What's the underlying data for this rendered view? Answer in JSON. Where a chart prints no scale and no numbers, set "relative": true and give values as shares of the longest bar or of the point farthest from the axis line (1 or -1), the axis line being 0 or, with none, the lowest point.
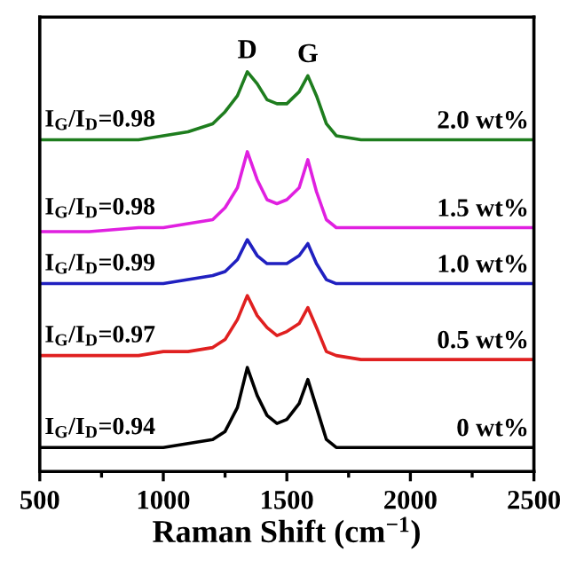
{
  "chart_data": {
    "type": "line",
    "relative": true,
    "xlabel": "Raman Shift (cm$^{−1}$)",
    "x": [
      500,
      700,
      900,
      1000,
      1100,
      1200,
      1250,
      1300,
      1340,
      1380,
      1420,
      1460,
      1500,
      1550,
      1585,
      1620,
      1660,
      1700,
      1800,
      2000,
      2200,
      2500
    ],
    "xlim": [
      500,
      2500
    ],
    "xticks": [
      500,
      {
        "value": 750,
        "label": null
      },
      1000,
      {
        "value": 1250,
        "label": null
      },
      1500,
      {
        "value": 1750,
        "label": null
      },
      2000,
      {
        "value": 2250,
        "label": null
      },
      2500
    ],
    "series": [
      {
        "name": "2.0 wt%",
        "color": "#1e7d1e",
        "values": [
          0.83,
          0.83,
          0.83,
          0.84,
          0.85,
          0.87,
          0.9,
          0.94,
          1.0,
          0.97,
          0.93,
          0.92,
          0.92,
          0.95,
          0.99,
          0.94,
          0.87,
          0.84,
          0.83,
          0.83,
          0.83,
          0.83
        ]
      },
      {
        "name": "1.5 wt%",
        "color": "#e020e0",
        "values": [
          0.6,
          0.6,
          0.61,
          0.61,
          0.62,
          0.63,
          0.66,
          0.71,
          0.8,
          0.73,
          0.68,
          0.67,
          0.68,
          0.71,
          0.78,
          0.7,
          0.63,
          0.61,
          0.61,
          0.61,
          0.61,
          0.61
        ]
      },
      {
        "name": "1.0 wt%",
        "color": "#2020c0",
        "values": [
          0.47,
          0.47,
          0.47,
          0.47,
          0.48,
          0.49,
          0.5,
          0.53,
          0.58,
          0.54,
          0.52,
          0.52,
          0.52,
          0.54,
          0.57,
          0.52,
          0.48,
          0.47,
          0.47,
          0.47,
          0.47,
          0.47
        ]
      },
      {
        "name": "0.5 wt%",
        "color": "#e02020",
        "values": [
          0.29,
          0.29,
          0.29,
          0.3,
          0.3,
          0.31,
          0.33,
          0.38,
          0.44,
          0.39,
          0.36,
          0.34,
          0.35,
          0.37,
          0.41,
          0.36,
          0.3,
          0.29,
          0.28,
          0.28,
          0.28,
          0.28
        ]
      },
      {
        "name": "0 wt%",
        "color": "#000000",
        "values": [
          0.06,
          0.06,
          0.06,
          0.06,
          0.07,
          0.08,
          0.1,
          0.16,
          0.26,
          0.19,
          0.14,
          0.12,
          0.13,
          0.17,
          0.23,
          0.16,
          0.08,
          0.06,
          0.06,
          0.06,
          0.06,
          0.06
        ]
      }
    ],
    "annotations": [
      {
        "text": "D",
        "x": 1340,
        "y": 1.0
      },
      {
        "text": "G",
        "x": 1585,
        "y": 0.99
      },
      {
        "text": "I$_{G}$/I$_{D}$=0.98",
        "x": 520,
        "y": 0.83
      },
      {
        "text": "I$_{G}$/I$_{D}$=0.98",
        "x": 520,
        "y": 0.61
      },
      {
        "text": "I$_{G}$/I$_{D}$=0.99",
        "x": 520,
        "y": 0.47
      },
      {
        "text": "I$_{G}$/I$_{D}$=0.97",
        "x": 520,
        "y": 0.29
      },
      {
        "text": "I$_{G}$/I$_{D}$=0.94",
        "x": 520,
        "y": 0.06
      }
    ],
    "legend": false,
    "grid": false
  }
}
